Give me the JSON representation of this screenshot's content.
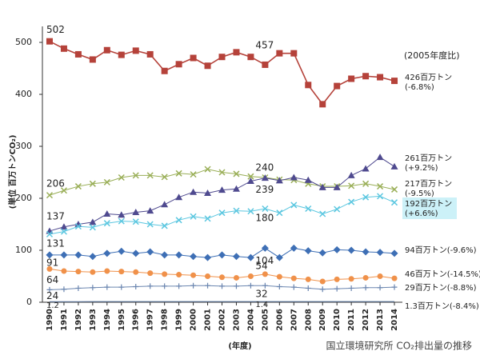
{
  "chart_data": {
    "type": "line",
    "y_label": "(単位 百万トンCO₂)",
    "x_label": "(年度)",
    "source": "国立環境研究所 CO₂排出量の推移",
    "note": "(2005年度比)",
    "x": [
      1990,
      1991,
      1992,
      1993,
      1994,
      1995,
      1996,
      1997,
      1998,
      1999,
      2000,
      2001,
      2002,
      2003,
      2004,
      2005,
      2006,
      2007,
      2008,
      2009,
      2010,
      2011,
      2012,
      2013,
      2014
    ],
    "xlim": [
      1989.5,
      2014.5
    ],
    "xticks": [
      1990,
      1991,
      1992,
      1993,
      1994,
      1995,
      1996,
      1997,
      1998,
      1999,
      2000,
      2001,
      2002,
      2003,
      2004,
      2005,
      2006,
      2007,
      2008,
      2009,
      2010,
      2011,
      2012,
      2013,
      2014
    ],
    "ylim": [
      0,
      530
    ],
    "yticks": [
      0,
      100,
      200,
      300,
      400,
      500
    ],
    "grid": false,
    "series": [
      {
        "color": "#b5423a",
        "marker": "square",
        "end_label": [
          "426百万トン",
          "(-6.8%)"
        ],
        "values": [
          502,
          488,
          477,
          467,
          485,
          476,
          484,
          477,
          445,
          458,
          470,
          455,
          472,
          481,
          472,
          457,
          479,
          479,
          418,
          381,
          416,
          430,
          435,
          433,
          426
        ]
      },
      {
        "color": "#9aaf58",
        "marker": "x",
        "end_label": [
          "217百万トン",
          "(-9.5%)"
        ],
        "values": [
          206,
          215,
          223,
          228,
          231,
          240,
          244,
          244,
          241,
          248,
          246,
          256,
          250,
          247,
          242,
          240,
          236,
          235,
          228,
          223,
          223,
          224,
          228,
          223,
          217
        ]
      },
      {
        "color": "#4f4a8f",
        "marker": "triangle",
        "end_label": [
          "261百万トン",
          "(+9.2%)"
        ],
        "values": [
          137,
          145,
          150,
          154,
          170,
          168,
          173,
          176,
          188,
          202,
          212,
          210,
          216,
          218,
          233,
          239,
          234,
          240,
          235,
          221,
          221,
          244,
          257,
          279,
          261
        ]
      },
      {
        "color": "#5cc7e0",
        "marker": "x",
        "highlight": true,
        "end_label": [
          "192百万トン",
          "(+6.6%)"
        ],
        "values": [
          131,
          136,
          146,
          144,
          152,
          156,
          155,
          150,
          147,
          158,
          165,
          161,
          172,
          176,
          175,
          180,
          172,
          187,
          180,
          170,
          179,
          193,
          202,
          204,
          192
        ]
      },
      {
        "color": "#3e6fb5",
        "marker": "diamond",
        "end_label": [
          "94百万トン(-9.6%)"
        ],
        "values": [
          91,
          91,
          91,
          88,
          94,
          98,
          94,
          97,
          91,
          91,
          88,
          86,
          91,
          88,
          86,
          104,
          86,
          104,
          99,
          95,
          101,
          100,
          97,
          96,
          94
        ]
      },
      {
        "color": "#f0914a",
        "marker": "circle",
        "end_label": [
          "46百万トン(-14.5%)"
        ],
        "values": [
          64,
          60,
          59,
          58,
          60,
          59,
          58,
          56,
          54,
          53,
          52,
          50,
          48,
          47,
          50,
          54,
          49,
          46,
          44,
          40,
          44,
          45,
          47,
          50,
          46
        ]
      },
      {
        "color": "#6b86b0",
        "marker": "plus",
        "end_label": [
          "29百万トン(-8.8%)"
        ],
        "values": [
          24,
          25,
          27,
          28,
          29,
          29,
          30,
          31,
          31,
          31,
          32,
          32,
          31,
          31,
          32,
          32,
          30,
          29,
          27,
          25,
          26,
          27,
          28,
          28,
          29
        ]
      },
      {
        "color": "#6b86b0",
        "marker": "none",
        "end_label": [
          "1.3百万トン(-8.4%)"
        ],
        "values": [
          1.2,
          1.2,
          1.2,
          1.3,
          1.3,
          1.3,
          1.3,
          1.3,
          1.3,
          1.3,
          1.4,
          1.4,
          1.4,
          1.4,
          1.4,
          1.4,
          1.4,
          1.4,
          1.3,
          1.3,
          1.3,
          1.3,
          1.3,
          1.3,
          1.3
        ]
      }
    ]
  }
}
